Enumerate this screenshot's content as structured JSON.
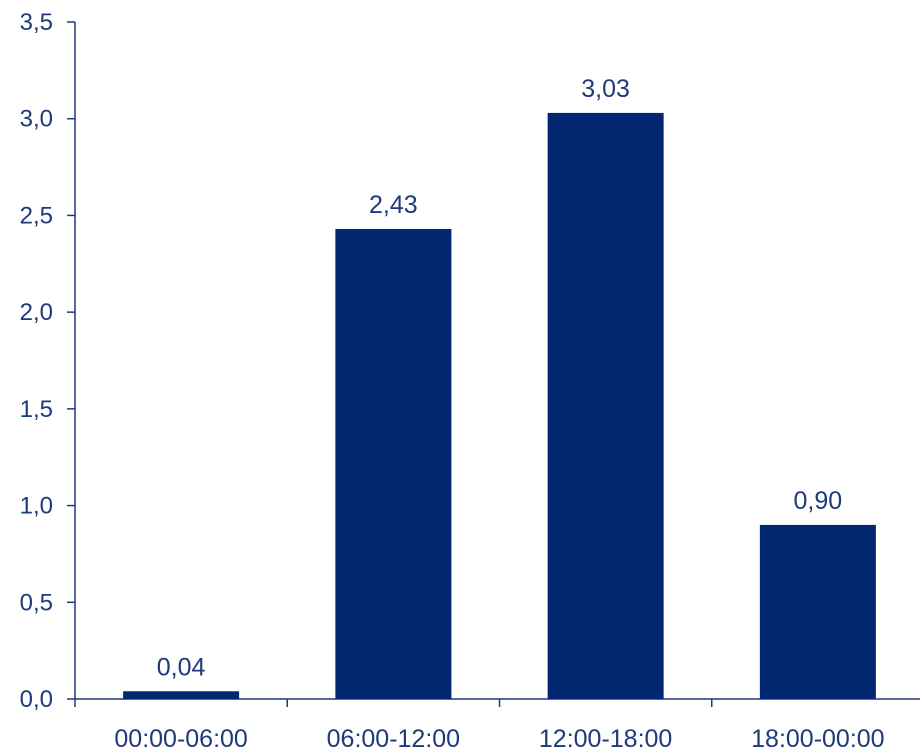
{
  "chart_data": {
    "type": "bar",
    "title": "",
    "xlabel": "",
    "ylabel": "",
    "categories": [
      "00:00-06:00",
      "06:00-12:00",
      "12:00-18:00",
      "18:00-00:00"
    ],
    "values": [
      0.04,
      2.43,
      3.03,
      0.9
    ],
    "value_labels": [
      "0,04",
      "2,43",
      "3,03",
      "0,90"
    ],
    "ylim": [
      0,
      3.5
    ],
    "y_ticks": [
      0,
      0.5,
      1.0,
      1.5,
      2.0,
      2.5,
      3.0,
      3.5
    ],
    "y_tick_labels": [
      "0,0",
      "0,5",
      "1,0",
      "1,5",
      "2,0",
      "2,5",
      "3,0",
      "3,5"
    ],
    "grid": false,
    "legend": "none",
    "colors": {
      "bar": "#032670",
      "axis": "#1f3a7a",
      "text": "#1f3a7a"
    }
  }
}
